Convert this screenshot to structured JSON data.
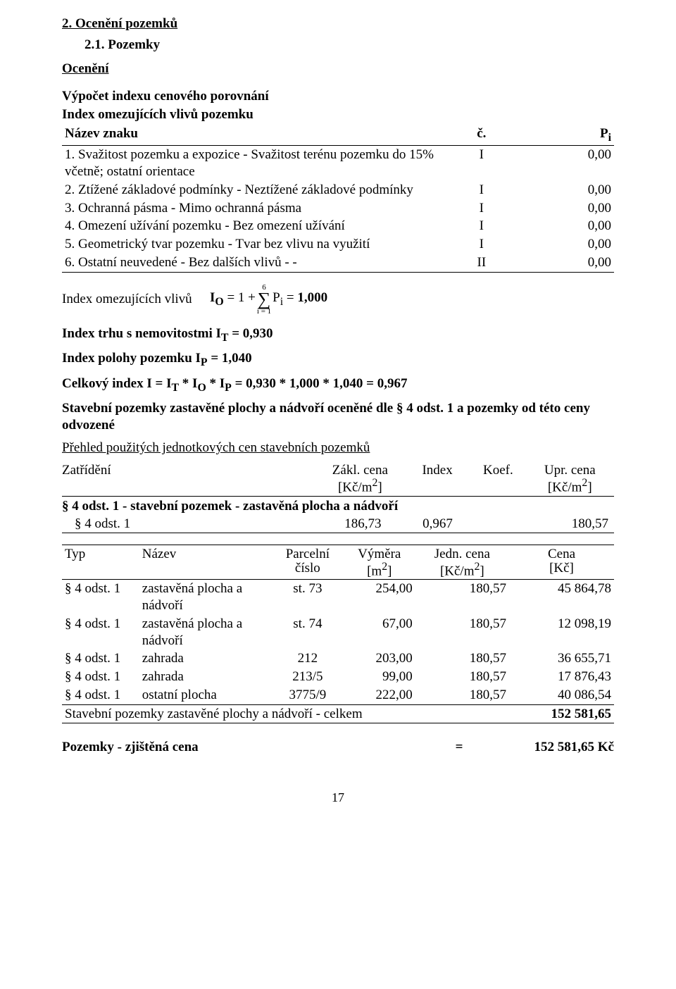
{
  "section": {
    "title": "2. Ocenění pozemků",
    "subtitle": "2.1. Pozemky",
    "ocen": "Ocenění"
  },
  "idx": {
    "heading1": "Výpočet indexu cenového porovnání",
    "heading2": "Index omezujících vlivů pozemku",
    "hdr_name": "Název znaku",
    "hdr_c": "č.",
    "hdr_p": "Pi",
    "rows": [
      {
        "name": "1. Svažitost pozemku a expozice - Svažitost terénu pozemku do 15% včetně; ostatní orientace",
        "c": "I",
        "p": "0,00"
      },
      {
        "name": "2. Ztížené základové podmínky - Neztížené základové podmínky",
        "c": "I",
        "p": "0,00"
      },
      {
        "name": "3. Ochranná pásma - Mimo ochranná pásma",
        "c": "I",
        "p": "0,00"
      },
      {
        "name": "4. Omezení užívání pozemku - Bez omezení užívání",
        "c": "I",
        "p": "0,00"
      },
      {
        "name": "5. Geometrický tvar pozemku - Tvar bez vlivu na využití",
        "c": "I",
        "p": "0,00"
      },
      {
        "name": "6. Ostatní neuvedené - Bez dalších vlivů - -",
        "c": "II",
        "p": "0,00"
      }
    ]
  },
  "formula": {
    "label": "Index omezujících vlivů",
    "prefix": "IO = 1 + ",
    "upper": "6",
    "lower": "i = 1",
    "suffix": " Pi = ",
    "result": "1,000"
  },
  "it_line": {
    "t1": "Index trhu s nemovitostmi IT = ",
    "v": "0,930"
  },
  "ip_line": {
    "t1": "Index polohy pozemku IP = ",
    "v": "1,040"
  },
  "ci_line": {
    "t1": "Celkový index I = IT * IO * IP = 0,930 * 1,000 * 1,040 = ",
    "v": "0,967"
  },
  "sp_line1": "Stavební pozemky zastavěné plochy a nádvoří oceněné dle § 4 odst. 1 a pozemky od této ceny odvozené",
  "overview_title": "Přehled použitých jednotkových cen stavebních pozemků",
  "price_head": {
    "c1": "Zatřídění",
    "c2a": "Zákl. cena",
    "c2b": "[Kč/m2]",
    "c3": "Index",
    "c4": "Koef.",
    "c5a": "Upr. cena",
    "c5b": "[Kč/m2]"
  },
  "price_sub": "§ 4 odst. 1 - stavební pozemek - zastavěná plocha a nádvoří",
  "price_row": {
    "c1": "§ 4 odst. 1",
    "c2": "186,73",
    "c3": "0,967",
    "c5": "180,57"
  },
  "parc_head": {
    "typ": "Typ",
    "naz": "Název",
    "pc1": "Parcelní",
    "pc2": "číslo",
    "vym1": "Výměra",
    "vym2": "[m2]",
    "jc1": "Jedn. cena",
    "jc2": "[Kč/m2]",
    "cena1": "Cena",
    "cena2": "[Kč]"
  },
  "parc_rows": [
    {
      "typ": "§ 4 odst. 1",
      "naz": "zastavěná plocha a nádvoří",
      "pc": "st. 73",
      "vym": "254,00",
      "jc": "180,57",
      "cena": "45 864,78"
    },
    {
      "typ": "§ 4 odst. 1",
      "naz": "zastavěná plocha a nádvoří",
      "pc": "st. 74",
      "vym": "67,00",
      "jc": "180,57",
      "cena": "12 098,19"
    },
    {
      "typ": "§ 4 odst. 1",
      "naz": "zahrada",
      "pc": "212",
      "vym": "203,00",
      "jc": "180,57",
      "cena": "36 655,71"
    },
    {
      "typ": "§ 4 odst. 1",
      "naz": "zahrada",
      "pc": "213/5",
      "vym": "99,00",
      "jc": "180,57",
      "cena": "17 876,43"
    },
    {
      "typ": "§ 4 odst. 1",
      "naz": "ostatní plocha",
      "pc": "3775/9",
      "vym": "222,00",
      "jc": "180,57",
      "cena": "40 086,54"
    }
  ],
  "parc_sum": {
    "label": "Stavební pozemky zastavěné plochy a nádvoří - celkem",
    "val": "152 581,65"
  },
  "final": {
    "label": "Pozemky - zjištěná cena",
    "eq": "=",
    "val": "152 581,65 Kč"
  },
  "page": "17"
}
